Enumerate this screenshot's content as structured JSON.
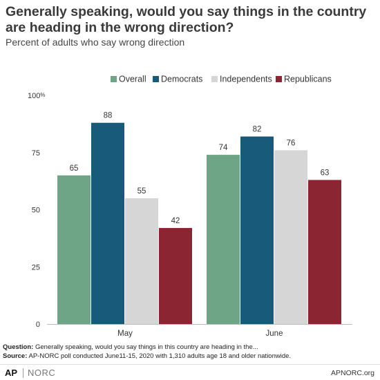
{
  "header": {
    "title": "Generally speaking, would you say things in the country are heading in the wrong direction?",
    "subtitle": "Percent of adults who say wrong direction"
  },
  "chart_data": {
    "type": "bar",
    "categories": [
      "May",
      "June"
    ],
    "series": [
      {
        "name": "Overall",
        "values": [
          65,
          74
        ],
        "color": "#6fa587"
      },
      {
        "name": "Democrats",
        "values": [
          88,
          82
        ],
        "color": "#185a7a"
      },
      {
        "name": "Independents",
        "values": [
          55,
          76
        ],
        "color": "#d6d6d6"
      },
      {
        "name": "Republicans",
        "values": [
          42,
          63
        ],
        "color": "#8b2531"
      }
    ],
    "ylim": [
      0,
      100
    ],
    "yticks": [
      "0",
      "25",
      "50",
      "75",
      "100%"
    ],
    "ytick_values": [
      0,
      25,
      50,
      75,
      100
    ],
    "legend_position": "top-center",
    "grid": false,
    "data_labels": true
  },
  "footer": {
    "question_label": "Question:",
    "question_text": "Generally speaking, would you say things in this country are heading in the...",
    "source_label": "Source:",
    "source_text": "AP-NORC poll conducted June11-15, 2020 with 1,310 adults age 18 and older nationwide.",
    "logo_ap": "AP",
    "logo_norc": "NORC",
    "site": "APNORC.org"
  }
}
